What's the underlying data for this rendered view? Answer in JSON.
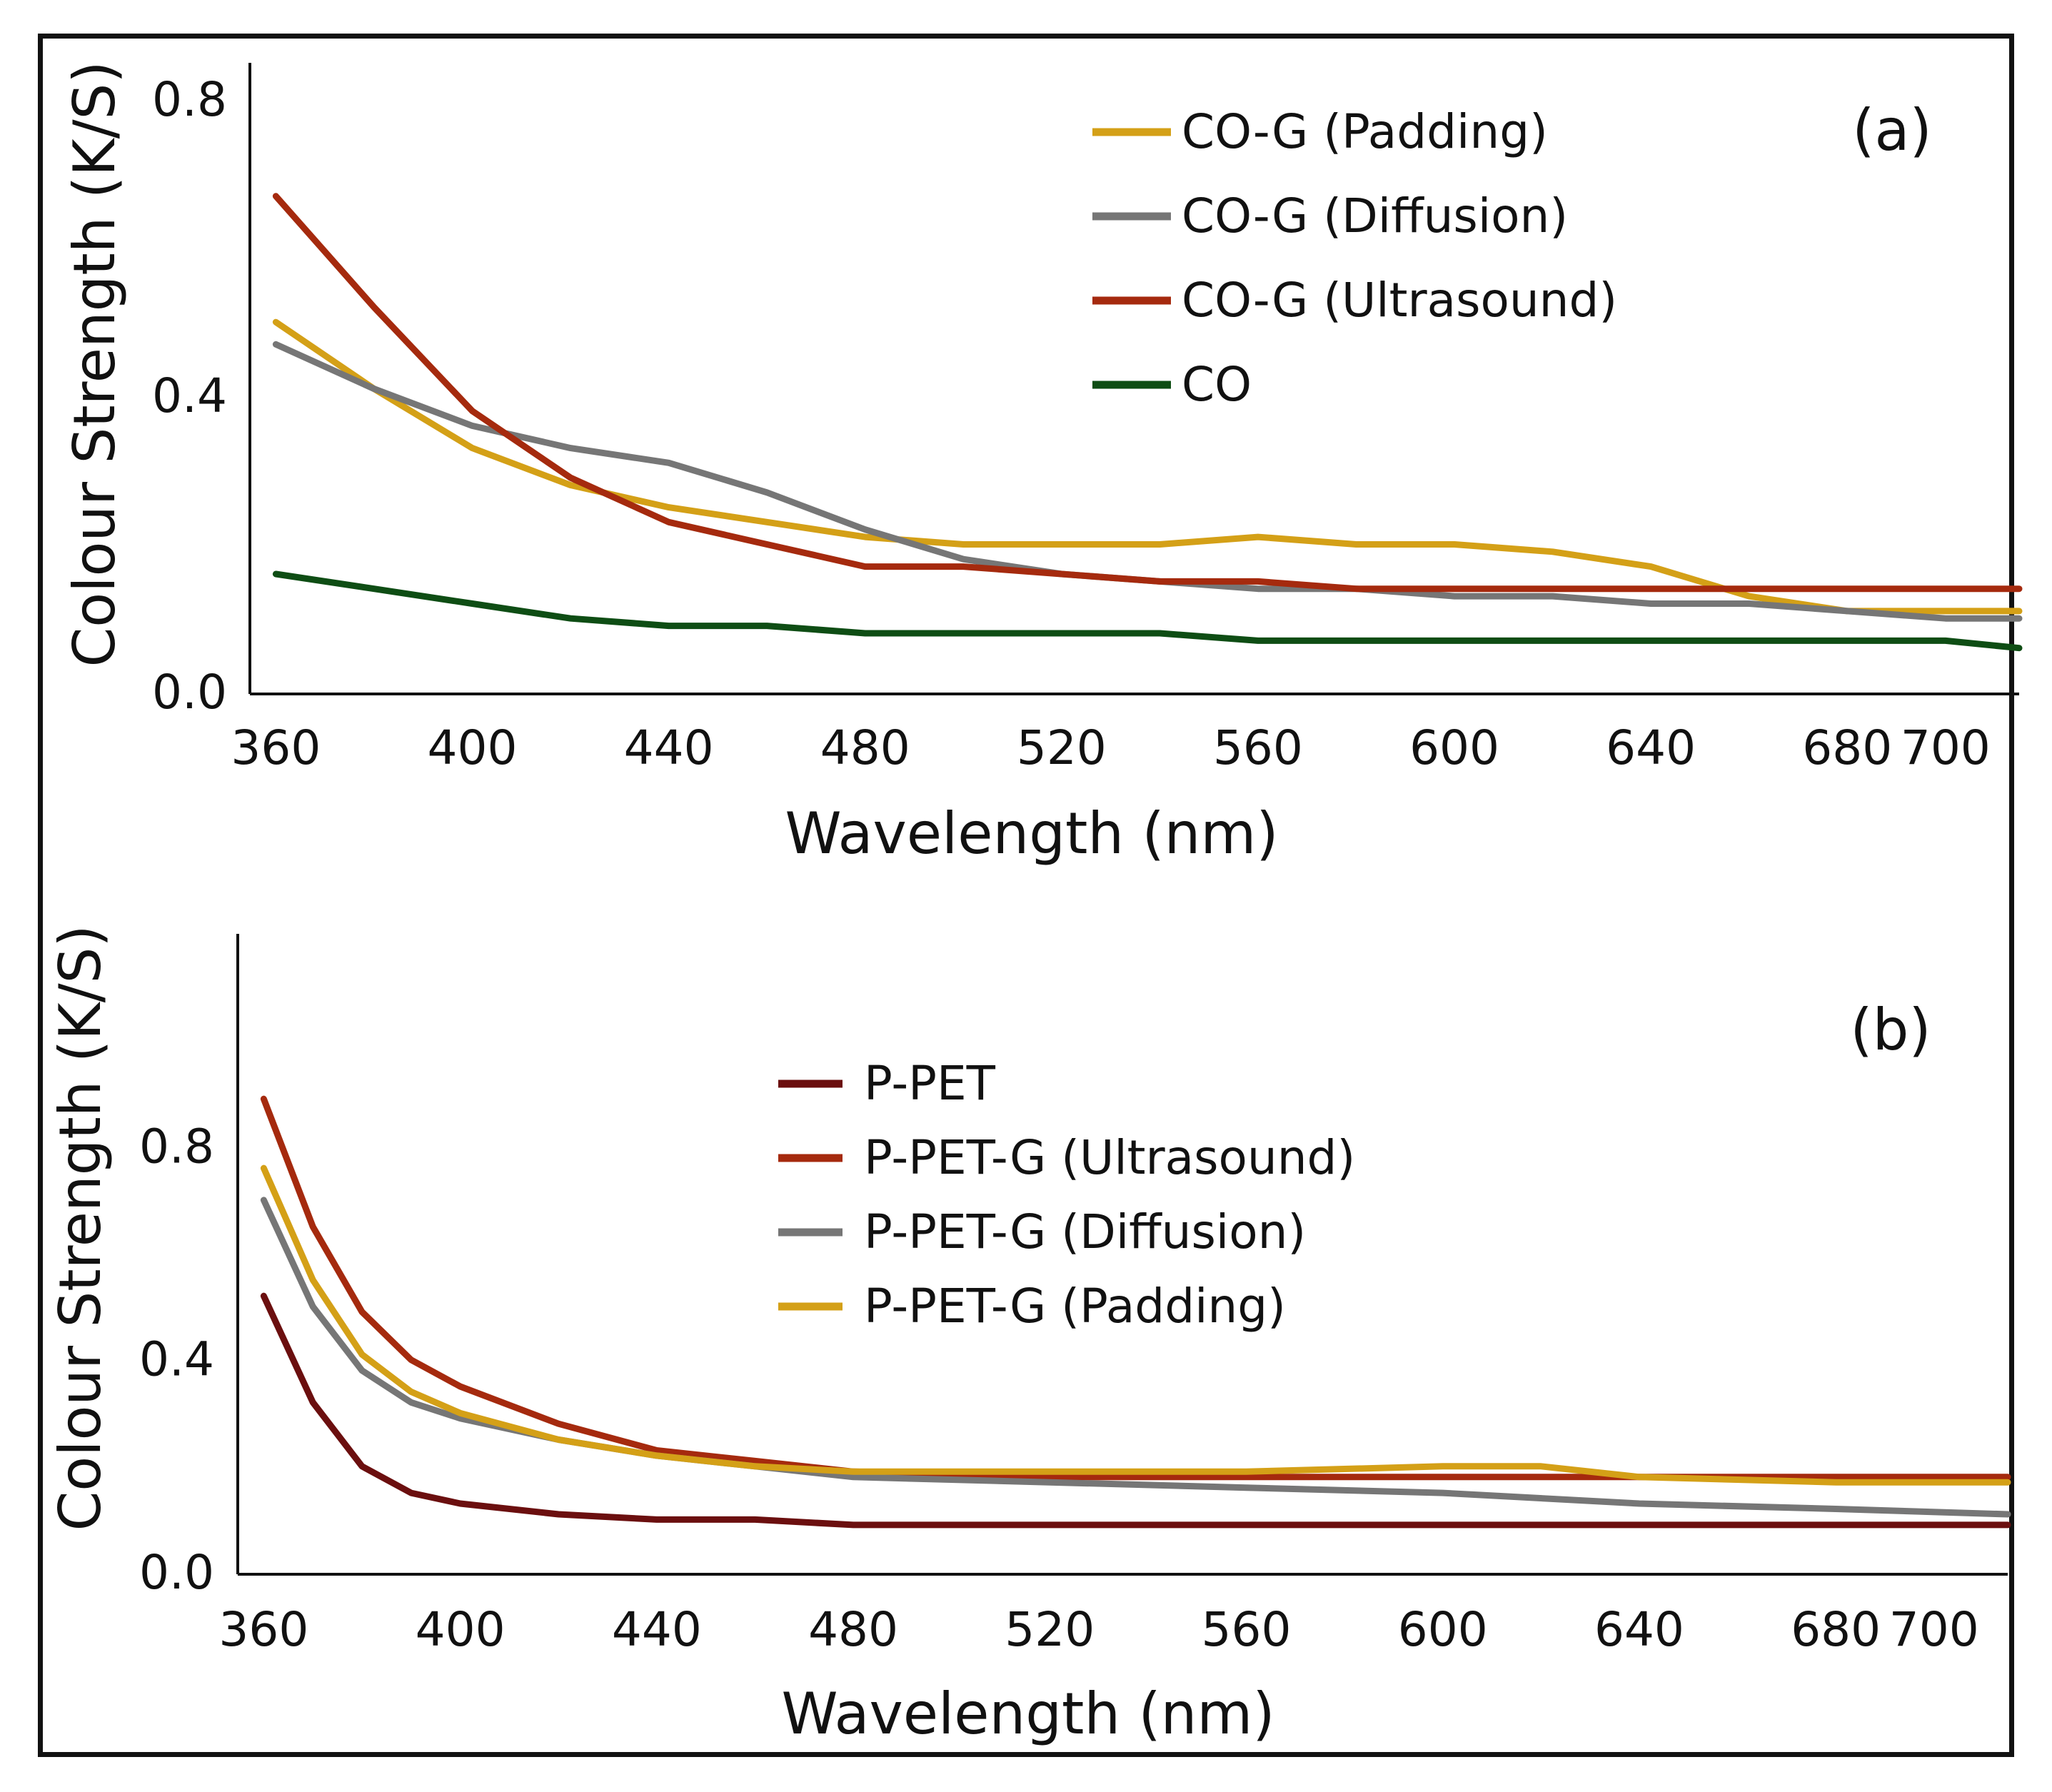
{
  "chart_data": [
    {
      "type": "line",
      "panel_label": "(a)",
      "xlabel": "Wavelength (nm)",
      "ylabel": "Colour Strength (K/S)",
      "xlim": [
        355,
        715
      ],
      "ylim": [
        0,
        0.85
      ],
      "x_ticks": [
        "360",
        "400",
        "440",
        "480",
        "520",
        "560",
        "600",
        "640",
        "680",
        "700"
      ],
      "x_tick_values": [
        360,
        400,
        440,
        480,
        520,
        560,
        600,
        640,
        680,
        700
      ],
      "y_ticks": [
        "0.0",
        "0.4",
        "0.8"
      ],
      "y_tick_values": [
        0,
        0.4,
        0.8
      ],
      "legend_position": "top-right",
      "series": [
        {
          "name": "CO-G (Padding)",
          "color": "#D4A017",
          "points": [
            [
              360,
              0.5
            ],
            [
              380,
              0.41
            ],
            [
              400,
              0.33
            ],
            [
              420,
              0.28
            ],
            [
              440,
              0.25
            ],
            [
              460,
              0.23
            ],
            [
              480,
              0.21
            ],
            [
              500,
              0.2
            ],
            [
              520,
              0.2
            ],
            [
              540,
              0.2
            ],
            [
              560,
              0.21
            ],
            [
              580,
              0.2
            ],
            [
              600,
              0.2
            ],
            [
              620,
              0.19
            ],
            [
              640,
              0.17
            ],
            [
              660,
              0.13
            ],
            [
              680,
              0.11
            ],
            [
              700,
              0.11
            ],
            [
              715,
              0.11
            ]
          ]
        },
        {
          "name": "CO-G (Diffusion)",
          "color": "#767676",
          "points": [
            [
              360,
              0.47
            ],
            [
              380,
              0.41
            ],
            [
              400,
              0.36
            ],
            [
              420,
              0.33
            ],
            [
              440,
              0.31
            ],
            [
              460,
              0.27
            ],
            [
              480,
              0.22
            ],
            [
              500,
              0.18
            ],
            [
              520,
              0.16
            ],
            [
              540,
              0.15
            ],
            [
              560,
              0.14
            ],
            [
              580,
              0.14
            ],
            [
              600,
              0.13
            ],
            [
              620,
              0.13
            ],
            [
              640,
              0.12
            ],
            [
              660,
              0.12
            ],
            [
              680,
              0.11
            ],
            [
              700,
              0.1
            ],
            [
              715,
              0.1
            ]
          ]
        },
        {
          "name": "CO-G (Ultrasound)",
          "color": "#A52A0E",
          "points": [
            [
              360,
              0.67
            ],
            [
              380,
              0.52
            ],
            [
              400,
              0.38
            ],
            [
              420,
              0.29
            ],
            [
              440,
              0.23
            ],
            [
              460,
              0.2
            ],
            [
              480,
              0.17
            ],
            [
              500,
              0.17
            ],
            [
              520,
              0.16
            ],
            [
              540,
              0.15
            ],
            [
              560,
              0.15
            ],
            [
              580,
              0.14
            ],
            [
              600,
              0.14
            ],
            [
              620,
              0.14
            ],
            [
              640,
              0.14
            ],
            [
              660,
              0.14
            ],
            [
              680,
              0.14
            ],
            [
              700,
              0.14
            ],
            [
              715,
              0.14
            ]
          ]
        },
        {
          "name": "CO",
          "color": "#0E4D14",
          "points": [
            [
              360,
              0.16
            ],
            [
              380,
              0.14
            ],
            [
              400,
              0.12
            ],
            [
              420,
              0.1
            ],
            [
              440,
              0.09
            ],
            [
              460,
              0.09
            ],
            [
              480,
              0.08
            ],
            [
              500,
              0.08
            ],
            [
              520,
              0.08
            ],
            [
              540,
              0.08
            ],
            [
              560,
              0.07
            ],
            [
              580,
              0.07
            ],
            [
              600,
              0.07
            ],
            [
              620,
              0.07
            ],
            [
              640,
              0.07
            ],
            [
              660,
              0.07
            ],
            [
              680,
              0.07
            ],
            [
              700,
              0.07
            ],
            [
              715,
              0.06
            ]
          ]
        }
      ]
    },
    {
      "type": "line",
      "panel_label": "(b)",
      "xlabel": "Wavelength (nm)",
      "ylabel": "Colour Strength (K/S)",
      "xlim": [
        355,
        715
      ],
      "ylim": [
        0,
        1.2
      ],
      "x_ticks": [
        "360",
        "400",
        "440",
        "480",
        "520",
        "560",
        "600",
        "640",
        "680",
        "700"
      ],
      "x_tick_values": [
        360,
        400,
        440,
        480,
        520,
        560,
        600,
        640,
        680,
        700
      ],
      "y_ticks": [
        "0.0",
        "0.4",
        "0.8"
      ],
      "y_tick_values": [
        0,
        0.4,
        0.8
      ],
      "legend_position": "center",
      "series": [
        {
          "name": "P-PET",
          "color": "#6B0F0F",
          "points": [
            [
              360,
              0.52
            ],
            [
              370,
              0.32
            ],
            [
              380,
              0.2
            ],
            [
              390,
              0.15
            ],
            [
              400,
              0.13
            ],
            [
              420,
              0.11
            ],
            [
              440,
              0.1
            ],
            [
              460,
              0.1
            ],
            [
              480,
              0.09
            ],
            [
              520,
              0.09
            ],
            [
              560,
              0.09
            ],
            [
              600,
              0.09
            ],
            [
              640,
              0.09
            ],
            [
              680,
              0.09
            ],
            [
              715,
              0.09
            ]
          ]
        },
        {
          "name": "P-PET-G (Ultrasound)",
          "color": "#A52A0E",
          "points": [
            [
              360,
              0.89
            ],
            [
              370,
              0.65
            ],
            [
              380,
              0.49
            ],
            [
              390,
              0.4
            ],
            [
              400,
              0.35
            ],
            [
              420,
              0.28
            ],
            [
              440,
              0.23
            ],
            [
              460,
              0.21
            ],
            [
              480,
              0.19
            ],
            [
              520,
              0.18
            ],
            [
              560,
              0.18
            ],
            [
              600,
              0.18
            ],
            [
              640,
              0.18
            ],
            [
              680,
              0.18
            ],
            [
              715,
              0.18
            ]
          ]
        },
        {
          "name": "P-PET-G (Diffusion)",
          "color": "#767676",
          "points": [
            [
              360,
              0.7
            ],
            [
              370,
              0.5
            ],
            [
              380,
              0.38
            ],
            [
              390,
              0.32
            ],
            [
              400,
              0.29
            ],
            [
              420,
              0.25
            ],
            [
              440,
              0.22
            ],
            [
              460,
              0.2
            ],
            [
              480,
              0.18
            ],
            [
              520,
              0.17
            ],
            [
              560,
              0.16
            ],
            [
              600,
              0.15
            ],
            [
              640,
              0.13
            ],
            [
              680,
              0.12
            ],
            [
              715,
              0.11
            ]
          ]
        },
        {
          "name": "P-PET-G (Padding)",
          "color": "#D4A017",
          "points": [
            [
              360,
              0.76
            ],
            [
              370,
              0.55
            ],
            [
              380,
              0.41
            ],
            [
              390,
              0.34
            ],
            [
              400,
              0.3
            ],
            [
              420,
              0.25
            ],
            [
              440,
              0.22
            ],
            [
              460,
              0.2
            ],
            [
              480,
              0.19
            ],
            [
              520,
              0.19
            ],
            [
              560,
              0.19
            ],
            [
              600,
              0.2
            ],
            [
              620,
              0.2
            ],
            [
              640,
              0.18
            ],
            [
              680,
              0.17
            ],
            [
              715,
              0.17
            ]
          ]
        }
      ]
    }
  ]
}
